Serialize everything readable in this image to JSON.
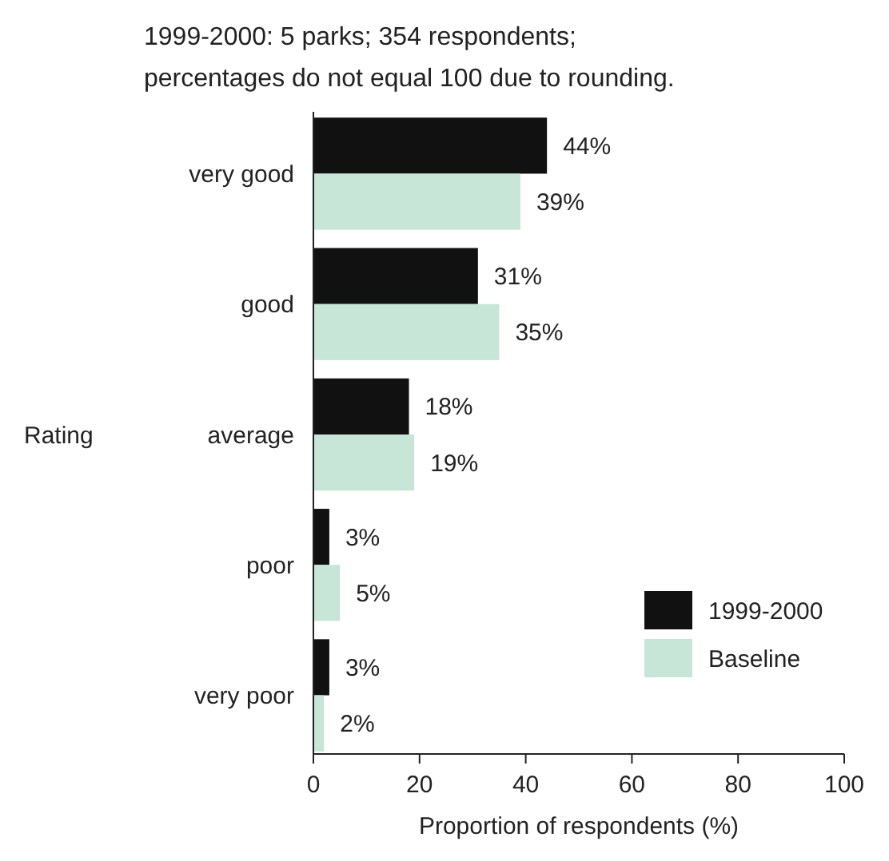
{
  "chart_data": {
    "type": "bar",
    "orientation": "horizontal",
    "title": "1999-2000:  5 parks; 354 respondents;",
    "subtitle": "percentages do not equal 100 due to rounding.",
    "xlabel": "Proportion of respondents (%)",
    "ylabel": "Rating",
    "categories": [
      "very good",
      "good",
      "average",
      "poor",
      "very poor"
    ],
    "series": [
      {
        "name": "1999-2000",
        "color": "#111111",
        "values": [
          44,
          31,
          18,
          3,
          3
        ],
        "value_labels": [
          "44%",
          "31%",
          "18%",
          "3%",
          "3%"
        ]
      },
      {
        "name": "Baseline",
        "color": "#c8e6d8",
        "values": [
          39,
          35,
          19,
          5,
          2
        ],
        "value_labels": [
          "39%",
          "35%",
          "19%",
          "5%",
          "2%"
        ]
      }
    ],
    "xlim": [
      0,
      100
    ],
    "xticks": [
      0,
      20,
      40,
      60,
      80,
      100
    ],
    "grid": false,
    "legend": "bottom right"
  }
}
